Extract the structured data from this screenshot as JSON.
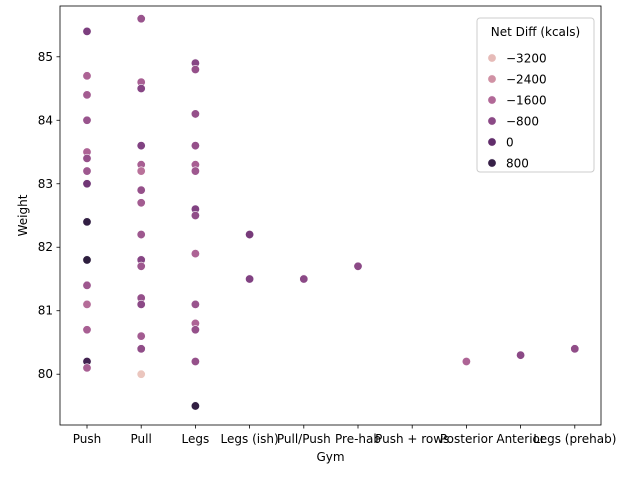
{
  "chart_data": {
    "type": "scatter",
    "xlabel": "Gym",
    "ylabel": "Weight",
    "categories": [
      "Push",
      "Pull",
      "Legs",
      "Legs (ish)",
      "Pull/Push",
      "Pre-hab",
      "Push + rows",
      "Posterior",
      "Anterior",
      "Legs (prehab)"
    ],
    "ylim": [
      79.2,
      85.8
    ],
    "yticks": [
      80,
      81,
      82,
      83,
      84,
      85
    ],
    "hue": {
      "name": "Net Diff (kcals)",
      "range": [
        -3600,
        1000
      ],
      "legend_values": [
        -3200,
        -2400,
        -1600,
        -800,
        0,
        800
      ],
      "legend_labels": [
        "−3200",
        "−2400",
        "−1600",
        "−800",
        "0",
        "800"
      ]
    },
    "points": [
      {
        "x": "Push",
        "y": 85.4,
        "c": -500
      },
      {
        "x": "Push",
        "y": 84.7,
        "c": -1500
      },
      {
        "x": "Push",
        "y": 84.4,
        "c": -1300
      },
      {
        "x": "Push",
        "y": 84.0,
        "c": -1100
      },
      {
        "x": "Push",
        "y": 83.5,
        "c": -1500
      },
      {
        "x": "Push",
        "y": 83.4,
        "c": -1000
      },
      {
        "x": "Push",
        "y": 83.2,
        "c": -1200
      },
      {
        "x": "Push",
        "y": 83.0,
        "c": -300
      },
      {
        "x": "Push",
        "y": 82.4,
        "c": 900
      },
      {
        "x": "Push",
        "y": 81.8,
        "c": 1000
      },
      {
        "x": "Push",
        "y": 81.4,
        "c": -1200
      },
      {
        "x": "Push",
        "y": 81.1,
        "c": -1700
      },
      {
        "x": "Push",
        "y": 80.7,
        "c": -1400
      },
      {
        "x": "Push",
        "y": 80.2,
        "c": 600
      },
      {
        "x": "Push",
        "y": 80.1,
        "c": -1400
      },
      {
        "x": "Pull",
        "y": 85.6,
        "c": -1100
      },
      {
        "x": "Pull",
        "y": 84.6,
        "c": -1400
      },
      {
        "x": "Pull",
        "y": 84.5,
        "c": -700
      },
      {
        "x": "Pull",
        "y": 83.6,
        "c": -600
      },
      {
        "x": "Pull",
        "y": 83.3,
        "c": -1400
      },
      {
        "x": "Pull",
        "y": 83.2,
        "c": -1800
      },
      {
        "x": "Pull",
        "y": 82.9,
        "c": -1000
      },
      {
        "x": "Pull",
        "y": 82.7,
        "c": -1300
      },
      {
        "x": "Pull",
        "y": 82.2,
        "c": -1200
      },
      {
        "x": "Pull",
        "y": 81.8,
        "c": -700
      },
      {
        "x": "Pull",
        "y": 81.7,
        "c": -1200
      },
      {
        "x": "Pull",
        "y": 81.2,
        "c": -1000
      },
      {
        "x": "Pull",
        "y": 81.1,
        "c": -800
      },
      {
        "x": "Pull",
        "y": 80.6,
        "c": -1300
      },
      {
        "x": "Pull",
        "y": 80.4,
        "c": -900
      },
      {
        "x": "Pull",
        "y": 80.0,
        "c": -3400
      },
      {
        "x": "Legs",
        "y": 84.9,
        "c": -700
      },
      {
        "x": "Legs",
        "y": 84.8,
        "c": -1000
      },
      {
        "x": "Legs",
        "y": 84.1,
        "c": -1000
      },
      {
        "x": "Legs",
        "y": 83.6,
        "c": -1000
      },
      {
        "x": "Legs",
        "y": 83.3,
        "c": -1400
      },
      {
        "x": "Legs",
        "y": 83.2,
        "c": -1200
      },
      {
        "x": "Legs",
        "y": 82.6,
        "c": -600
      },
      {
        "x": "Legs",
        "y": 82.5,
        "c": -900
      },
      {
        "x": "Legs",
        "y": 81.9,
        "c": -1500
      },
      {
        "x": "Legs",
        "y": 81.1,
        "c": -1100
      },
      {
        "x": "Legs",
        "y": 80.8,
        "c": -1500
      },
      {
        "x": "Legs",
        "y": 80.7,
        "c": -1000
      },
      {
        "x": "Legs",
        "y": 80.2,
        "c": -1000
      },
      {
        "x": "Legs",
        "y": 79.5,
        "c": 900
      },
      {
        "x": "Legs (ish)",
        "y": 82.2,
        "c": -400
      },
      {
        "x": "Legs (ish)",
        "y": 81.5,
        "c": -600
      },
      {
        "x": "Pull/Push",
        "y": 81.5,
        "c": -800
      },
      {
        "x": "Pre-hab",
        "y": 81.7,
        "c": -800
      },
      {
        "x": "Posterior",
        "y": 80.2,
        "c": -1500
      },
      {
        "x": "Anterior",
        "y": 80.3,
        "c": -800
      },
      {
        "x": "Legs (prehab)",
        "y": 80.4,
        "c": -900
      }
    ]
  }
}
